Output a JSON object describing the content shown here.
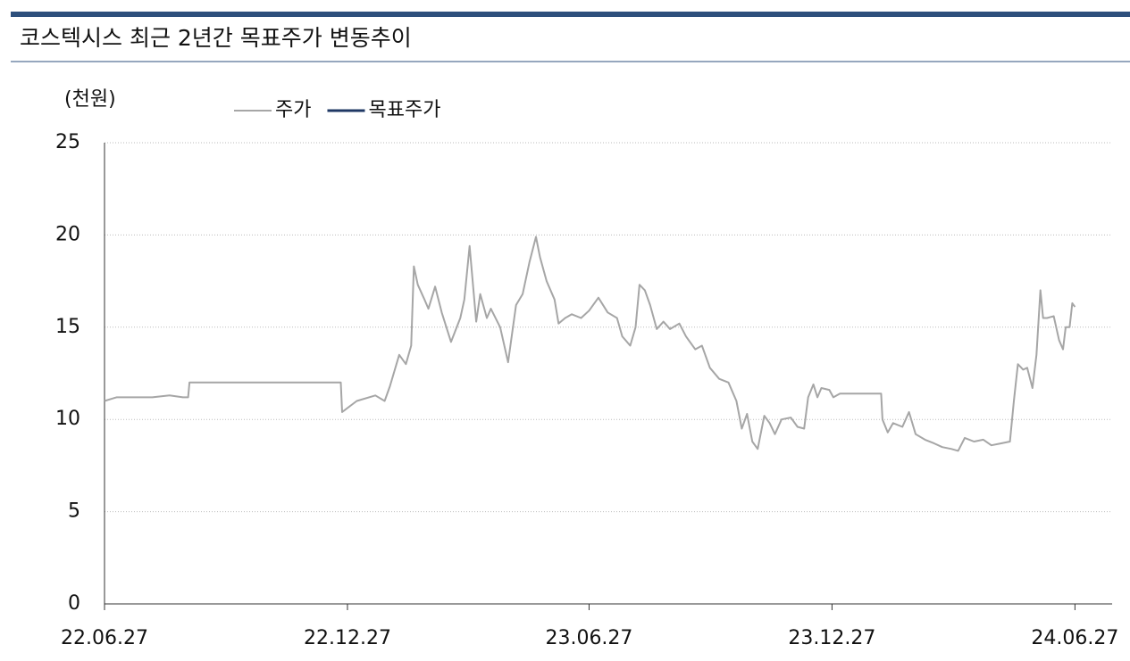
{
  "chart_data": {
    "type": "line",
    "title": "코스텍시스 최근 2년간 목표주가 변동추이",
    "y_label": "(천원)",
    "x": [
      "22.06.27",
      "22.07.06",
      "22.07.19",
      "22.08.02",
      "22.08.15",
      "22.08.25",
      "22.08.29",
      "22.08.30",
      "22.12.22",
      "22.12.23",
      "23.01.03",
      "23.01.17",
      "23.01.24",
      "23.01.28",
      "23.02.04",
      "23.02.09",
      "23.02.13",
      "23.02.15",
      "23.02.18",
      "23.02.23",
      "23.02.26",
      "23.03.03",
      "23.03.08",
      "23.03.15",
      "23.03.22",
      "23.03.25",
      "23.03.29",
      "23.04.03",
      "23.04.06",
      "23.04.11",
      "23.04.14",
      "23.04.21",
      "23.04.27",
      "23.05.03",
      "23.05.08",
      "23.05.13",
      "23.05.18",
      "23.05.21",
      "23.05.26",
      "23.06.01",
      "23.06.04",
      "23.06.09",
      "23.06.14",
      "23.06.21",
      "23.06.27",
      "23.07.04",
      "23.07.11",
      "23.07.18",
      "23.07.22",
      "23.07.28",
      "23.08.01",
      "23.08.04",
      "23.08.08",
      "23.08.12",
      "23.08.17",
      "23.08.22",
      "23.08.27",
      "23.09.03",
      "23.09.08",
      "23.09.15",
      "23.09.20",
      "23.09.26",
      "23.10.03",
      "23.10.10",
      "23.10.16",
      "23.10.20",
      "23.10.24",
      "23.10.28",
      "23.11.01",
      "23.11.06",
      "23.11.10",
      "23.11.14",
      "23.11.19",
      "23.11.26",
      "23.12.01",
      "23.12.06",
      "23.12.09",
      "23.12.13",
      "23.12.16",
      "23.12.19",
      "23.12.25",
      "23.12.28",
      "24.01.02",
      "24.02.02",
      "24.02.03",
      "24.02.07",
      "24.02.11",
      "24.02.18",
      "24.02.23",
      "24.02.28",
      "24.03.06",
      "24.03.13",
      "24.03.19",
      "24.03.26",
      "24.03.31",
      "24.04.05",
      "24.04.12",
      "24.04.19",
      "24.04.25",
      "24.05.02",
      "24.05.09",
      "24.05.12",
      "24.05.15",
      "24.05.19",
      "24.05.22",
      "24.05.26",
      "24.05.29",
      "24.06.01",
      "24.06.03",
      "24.06.06",
      "24.06.11",
      "24.06.15",
      "24.06.18",
      "24.06.20",
      "24.06.23",
      "24.06.25",
      "24.06.27"
    ],
    "series": [
      {
        "name": "주가",
        "color": "#a6a6a6",
        "values": [
          11.0,
          11.2,
          11.2,
          11.2,
          11.3,
          11.2,
          11.2,
          12.0,
          12.0,
          10.4,
          11.0,
          11.3,
          11.0,
          11.8,
          13.5,
          13.0,
          14.0,
          18.3,
          17.3,
          16.5,
          16.0,
          17.2,
          15.8,
          14.2,
          15.5,
          16.5,
          19.4,
          15.3,
          16.8,
          15.5,
          16.0,
          15.0,
          13.1,
          16.2,
          16.8,
          18.5,
          19.9,
          18.8,
          17.5,
          16.5,
          15.2,
          15.5,
          15.7,
          15.5,
          15.9,
          16.6,
          15.8,
          15.5,
          14.5,
          14.0,
          15.0,
          17.3,
          17.0,
          16.2,
          14.9,
          15.3,
          14.9,
          15.2,
          14.5,
          13.8,
          14.0,
          12.8,
          12.2,
          12.0,
          11.0,
          9.5,
          10.3,
          8.8,
          8.4,
          10.2,
          9.8,
          9.2,
          10.0,
          10.1,
          9.6,
          9.5,
          11.2,
          11.9,
          11.2,
          11.7,
          11.6,
          11.2,
          11.4,
          11.4,
          10.0,
          9.3,
          9.8,
          9.6,
          10.4,
          9.2,
          8.9,
          8.7,
          8.5,
          8.4,
          8.3,
          9.0,
          8.8,
          8.9,
          8.6,
          8.7,
          8.8,
          11.0,
          13.0,
          12.7,
          12.8,
          11.7,
          13.5,
          17.0,
          15.5,
          15.5,
          15.6,
          14.3,
          13.8,
          15.0,
          15.0,
          16.3,
          16.1
        ]
      },
      {
        "name": "목표주가",
        "color": "#1f3864",
        "values": [
          null,
          null,
          null,
          null,
          null,
          null,
          null,
          null,
          null,
          null,
          null,
          null,
          null,
          null,
          null,
          null,
          null,
          null,
          null,
          null,
          null,
          null,
          null,
          null,
          null,
          null,
          null,
          null,
          null,
          null,
          null,
          null,
          null,
          null,
          null,
          null,
          null,
          null,
          null,
          null,
          null,
          null,
          null,
          null,
          null,
          null,
          null,
          null,
          null,
          null,
          null,
          null,
          null,
          null,
          null,
          null,
          null,
          null,
          null,
          null,
          null,
          null,
          null,
          null,
          null,
          null,
          null,
          null,
          null,
          null,
          null,
          null,
          null,
          null,
          null,
          null,
          null,
          null,
          null,
          null,
          null,
          null,
          null,
          null,
          null,
          null,
          null,
          null,
          null,
          null,
          null,
          null,
          null,
          null,
          null,
          null,
          null,
          null,
          null,
          null,
          null,
          null,
          null,
          null,
          null,
          null,
          null,
          null,
          null,
          null,
          null,
          null,
          null,
          null,
          null,
          null,
          null
        ]
      }
    ],
    "xlim": [
      "22.06.27",
      "24.07.25"
    ],
    "xticks": [
      "22.06.27",
      "22.12.27",
      "23.06.27",
      "23.12.27",
      "24.06.27"
    ],
    "ylim": [
      0,
      25
    ],
    "yticks": [
      0,
      5,
      10,
      15,
      20,
      25
    ],
    "grid": true
  }
}
